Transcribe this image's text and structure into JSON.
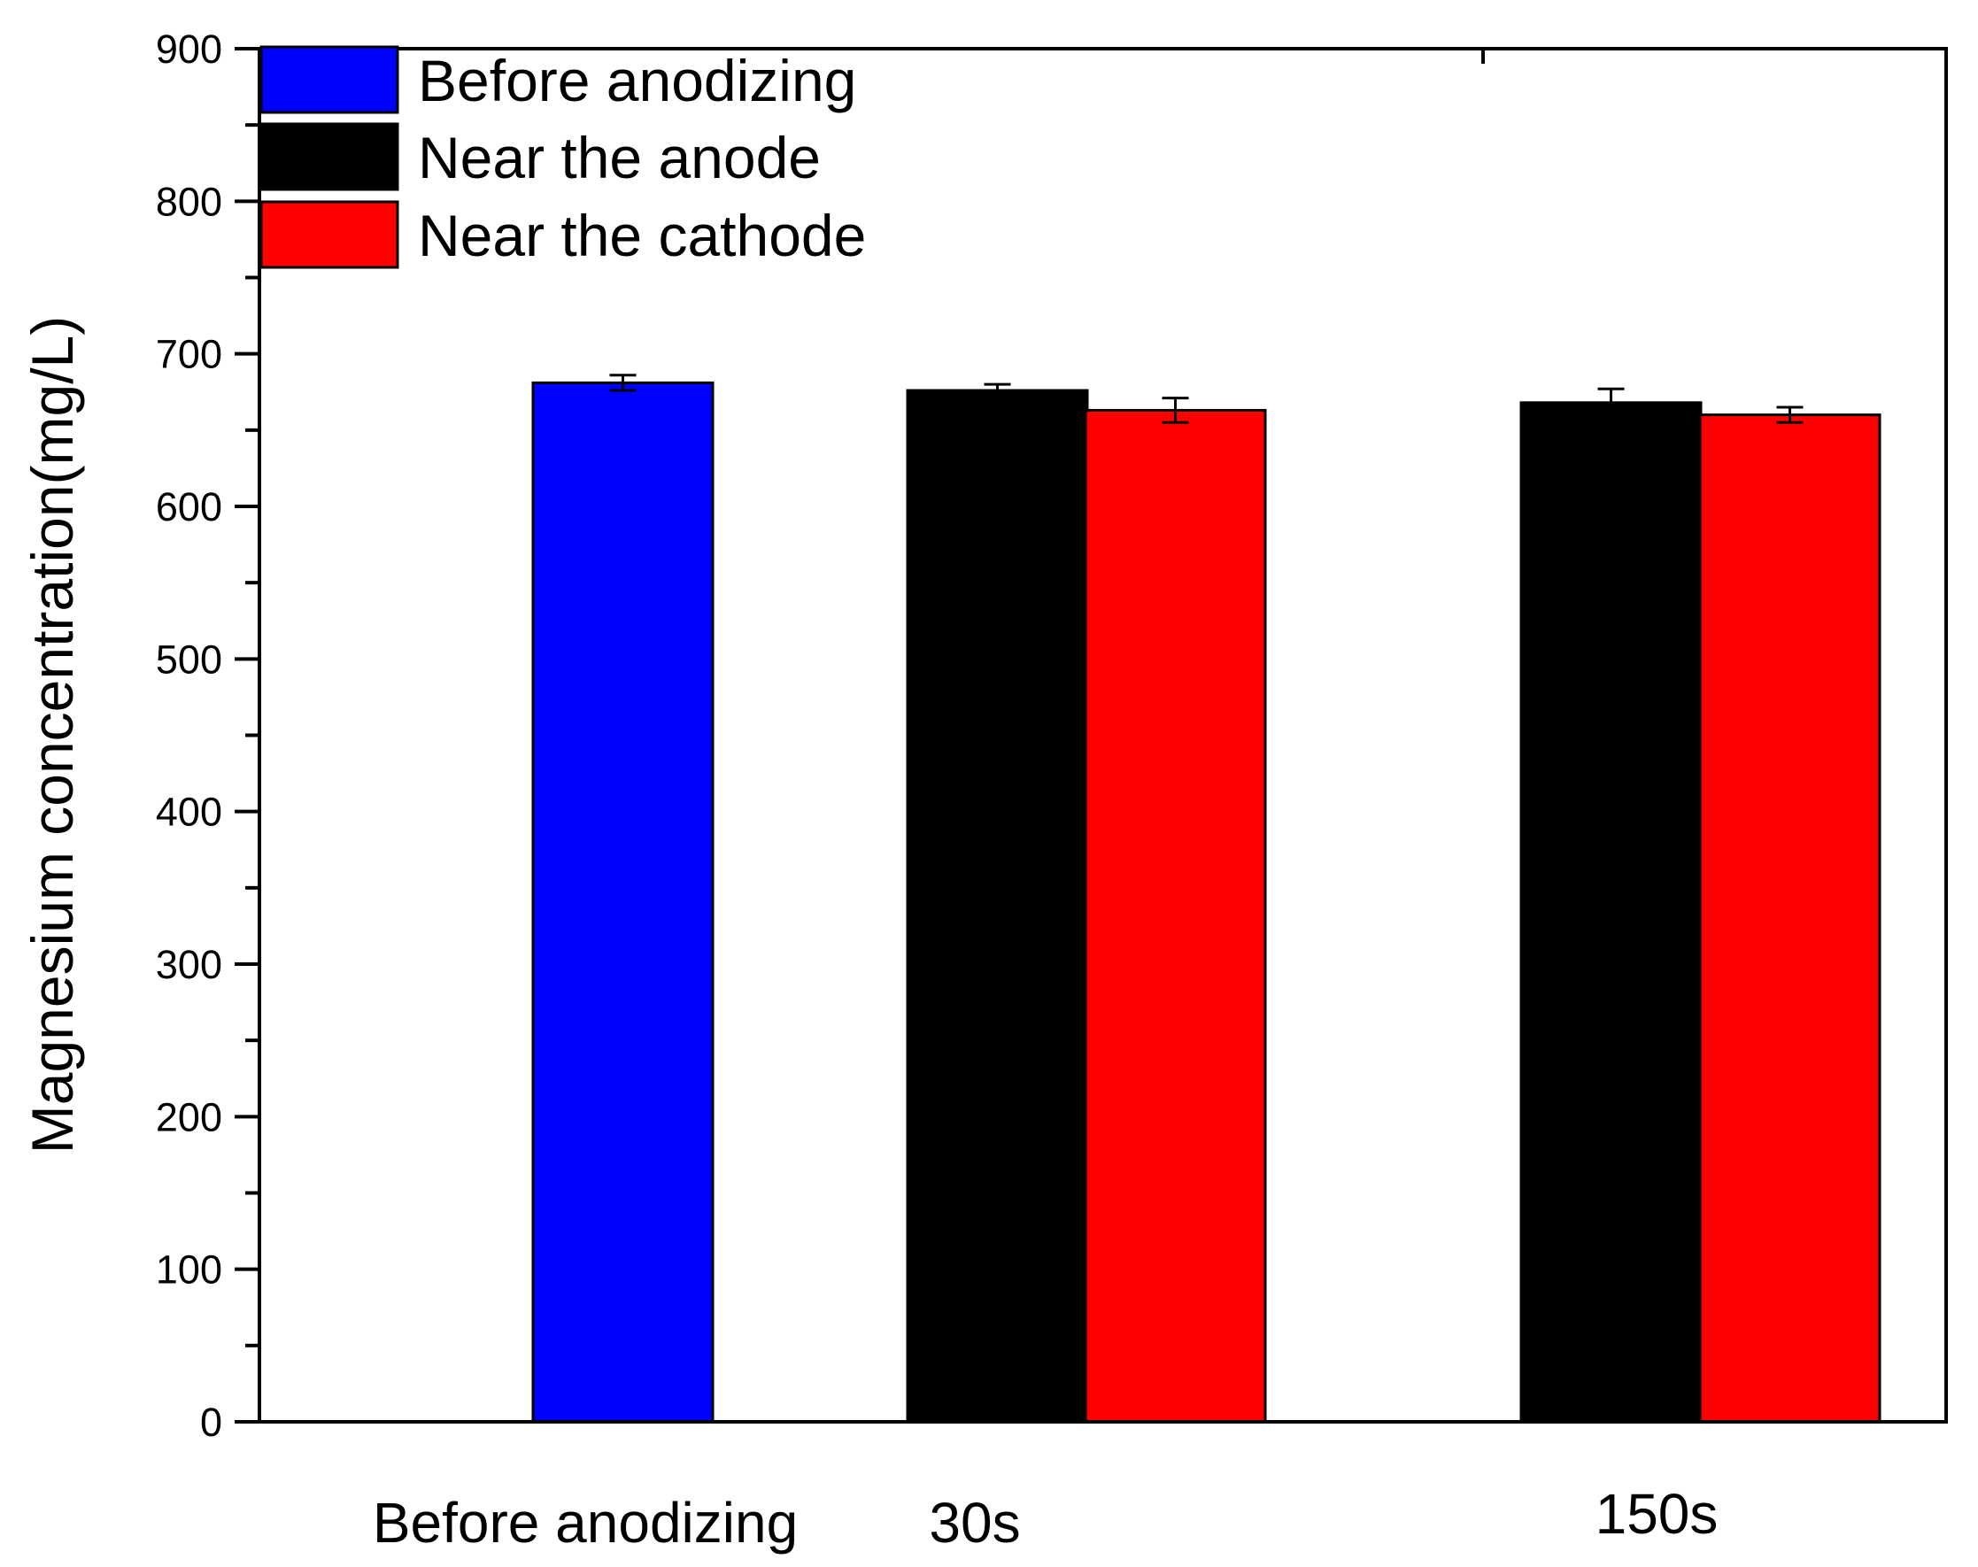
{
  "chart_data": {
    "type": "bar",
    "title": "",
    "xlabel": "",
    "ylabel": "Magnesium concentration(mg/L)",
    "ylim": [
      0,
      900
    ],
    "yticks": [
      0,
      100,
      200,
      300,
      400,
      500,
      600,
      700,
      800,
      900
    ],
    "yticks_labels": [
      "0",
      "100",
      "200",
      "300",
      "400",
      "500",
      "600",
      "700",
      "800",
      "900"
    ],
    "grid": false,
    "legend_position": "top-left",
    "categories": [
      "Before anodizing",
      "30s",
      "150s"
    ],
    "series": [
      {
        "name": "Before anodizing",
        "color": "#0000FF",
        "values": [
          681,
          null,
          null
        ],
        "errors": [
          5,
          null,
          null
        ]
      },
      {
        "name": "Near the anode",
        "color": "#000000",
        "values": [
          null,
          676,
          668
        ],
        "errors": [
          null,
          4,
          9
        ]
      },
      {
        "name": "Near the cathode",
        "color": "#FF0000",
        "values": [
          null,
          663,
          660
        ],
        "errors": [
          null,
          8,
          5
        ]
      }
    ]
  }
}
